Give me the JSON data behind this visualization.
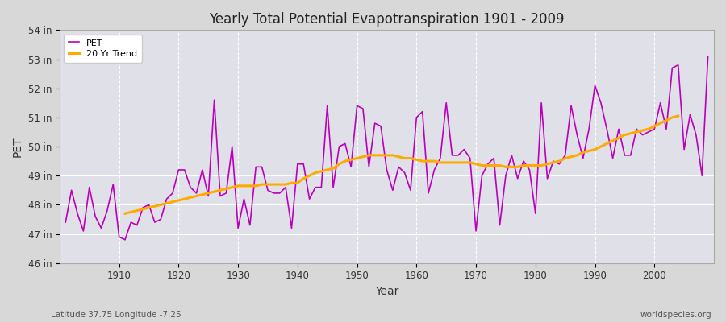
{
  "title": "Yearly Total Potential Evapotranspiration 1901 - 2009",
  "xlabel": "Year",
  "ylabel": "PET",
  "subtitle_left": "Latitude 37.75 Longitude -7.25",
  "subtitle_right": "worldspecies.org",
  "pet_color": "#bb00bb",
  "trend_color": "#ffaa00",
  "fig_bg_color": "#d8d8d8",
  "plot_bg_color": "#e0e0e8",
  "ylim": [
    46,
    54
  ],
  "yticks": [
    46,
    47,
    48,
    49,
    50,
    51,
    52,
    53,
    54
  ],
  "ytick_labels": [
    "46 in",
    "47 in",
    "48 in",
    "49 in",
    "50 in",
    "51 in",
    "52 in",
    "53 in",
    "54 in"
  ],
  "xtick_positions": [
    1910,
    1920,
    1930,
    1940,
    1950,
    1960,
    1970,
    1980,
    1990,
    2000
  ],
  "years": [
    1901,
    1902,
    1903,
    1904,
    1905,
    1906,
    1907,
    1908,
    1909,
    1910,
    1911,
    1912,
    1913,
    1914,
    1915,
    1916,
    1917,
    1918,
    1919,
    1920,
    1921,
    1922,
    1923,
    1924,
    1925,
    1926,
    1927,
    1928,
    1929,
    1930,
    1931,
    1932,
    1933,
    1934,
    1935,
    1936,
    1937,
    1938,
    1939,
    1940,
    1941,
    1942,
    1943,
    1944,
    1945,
    1946,
    1947,
    1948,
    1949,
    1950,
    1951,
    1952,
    1953,
    1954,
    1955,
    1956,
    1957,
    1958,
    1959,
    1960,
    1961,
    1962,
    1963,
    1964,
    1965,
    1966,
    1967,
    1968,
    1969,
    1970,
    1971,
    1972,
    1973,
    1974,
    1975,
    1976,
    1977,
    1978,
    1979,
    1980,
    1981,
    1982,
    1983,
    1984,
    1985,
    1986,
    1987,
    1988,
    1989,
    1990,
    1991,
    1992,
    1993,
    1994,
    1995,
    1996,
    1997,
    1998,
    1999,
    2000,
    2001,
    2002,
    2003,
    2004,
    2005,
    2006,
    2007,
    2008,
    2009
  ],
  "pet_values": [
    47.4,
    48.5,
    47.7,
    47.1,
    48.6,
    47.6,
    47.2,
    47.8,
    48.7,
    46.9,
    46.8,
    47.4,
    47.3,
    47.9,
    48.0,
    47.4,
    47.5,
    48.2,
    48.4,
    49.2,
    49.2,
    48.6,
    48.4,
    49.2,
    48.3,
    51.6,
    48.3,
    48.4,
    50.0,
    47.2,
    48.2,
    47.3,
    49.3,
    49.3,
    48.5,
    48.4,
    48.4,
    48.6,
    47.2,
    49.4,
    49.4,
    48.2,
    48.6,
    48.6,
    51.4,
    48.6,
    50.0,
    50.1,
    49.3,
    51.4,
    51.3,
    49.3,
    50.8,
    50.7,
    49.2,
    48.5,
    49.3,
    49.1,
    48.5,
    51.0,
    51.2,
    48.4,
    49.2,
    49.6,
    51.5,
    49.7,
    49.7,
    49.9,
    49.6,
    47.1,
    49.0,
    49.4,
    49.6,
    47.3,
    49.0,
    49.7,
    48.9,
    49.5,
    49.2,
    47.7,
    51.5,
    48.9,
    49.5,
    49.4,
    49.7,
    51.4,
    50.4,
    49.6,
    50.6,
    52.1,
    51.5,
    50.6,
    49.6,
    50.6,
    49.7,
    49.7,
    50.6,
    50.4,
    50.5,
    50.6,
    51.5,
    50.6,
    52.7,
    52.8,
    49.9,
    51.1,
    50.4,
    49.0,
    53.1
  ],
  "trend_values": [
    null,
    null,
    null,
    null,
    null,
    null,
    null,
    null,
    null,
    null,
    47.7,
    47.75,
    47.8,
    47.85,
    47.9,
    47.95,
    48.0,
    48.05,
    48.1,
    48.15,
    48.2,
    48.25,
    48.3,
    48.35,
    48.4,
    48.45,
    48.5,
    48.55,
    48.6,
    48.65,
    48.65,
    48.65,
    48.65,
    48.7,
    48.7,
    48.7,
    48.7,
    48.7,
    48.75,
    48.75,
    48.9,
    49.0,
    49.1,
    49.15,
    49.2,
    49.25,
    49.4,
    49.5,
    49.55,
    49.6,
    49.65,
    49.7,
    49.7,
    49.7,
    49.7,
    49.7,
    49.65,
    49.6,
    49.6,
    49.55,
    49.5,
    49.5,
    49.5,
    49.45,
    49.45,
    49.45,
    49.45,
    49.45,
    49.45,
    49.4,
    49.35,
    49.35,
    49.35,
    49.35,
    49.3,
    49.3,
    49.3,
    49.35,
    49.35,
    49.35,
    49.35,
    49.4,
    49.45,
    49.5,
    49.6,
    49.65,
    49.7,
    49.8,
    49.85,
    49.9,
    50.0,
    50.1,
    50.2,
    50.3,
    50.4,
    50.45,
    50.5,
    50.55,
    50.6,
    50.7,
    50.8,
    50.9,
    51.0,
    51.05,
    null,
    null,
    null,
    null,
    null,
    null
  ]
}
